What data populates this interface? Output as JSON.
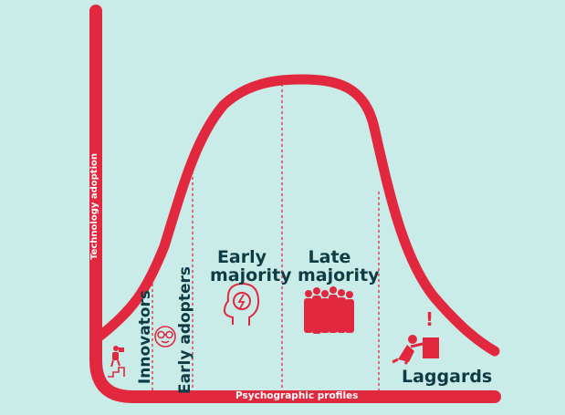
{
  "axes": {
    "y_label": "Technology adoption",
    "x_label": "Psychographic profiles"
  },
  "segments": [
    {
      "id": "innovators",
      "label": "Innovators",
      "icon": "stairs-person-icon"
    },
    {
      "id": "early_adopters",
      "label": "Early adopters",
      "icon": "glasses-face-icon"
    },
    {
      "id": "early_majority_line1",
      "label": "Early",
      "icon": "head-lightning-icon"
    },
    {
      "id": "early_majority_line2",
      "label": "majority"
    },
    {
      "id": "late_majority_line1",
      "label": "Late",
      "icon": "crowd-icon"
    },
    {
      "id": "late_majority_line2",
      "label": "majority"
    },
    {
      "id": "laggards",
      "label": "Laggards",
      "icon": "person-with-box-icon"
    }
  ],
  "colors": {
    "background": "#c9ece8",
    "curve": "#e2283f",
    "text": "#0f3b45",
    "axis_text": "#ffffff"
  },
  "exclamation": "!"
}
